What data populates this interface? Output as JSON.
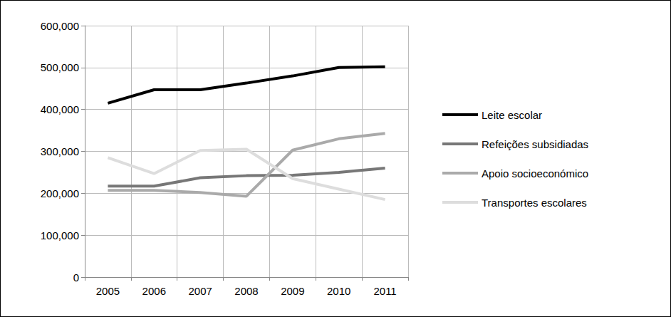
{
  "chart_data": {
    "type": "line",
    "categories": [
      "2005",
      "2006",
      "2007",
      "2008",
      "2009",
      "2010",
      "2011"
    ],
    "series": [
      {
        "name": "Leite escolar",
        "color": "#000000",
        "values": [
          415000,
          447000,
          447000,
          463000,
          480000,
          500000,
          502000
        ]
      },
      {
        "name": "Refeições subsidiadas",
        "color": "#777777",
        "values": [
          217000,
          217000,
          237000,
          242000,
          243000,
          250000,
          260000
        ]
      },
      {
        "name": "Apoio socioeconómico",
        "color": "#aaaaaa",
        "values": [
          207000,
          207000,
          202000,
          193000,
          303000,
          330000,
          343000
        ]
      },
      {
        "name": "Transportes escolares",
        "color": "#dddddd",
        "values": [
          285000,
          247000,
          302000,
          305000,
          235000,
          210000,
          185000
        ]
      }
    ],
    "ylim": [
      0,
      600000
    ],
    "yticks": [
      0,
      {
        "value": 100000,
        "label": "100,000"
      },
      {
        "value": 200000,
        "label": "200,000"
      },
      {
        "value": 300000,
        "label": "300,000"
      },
      {
        "value": 400000,
        "label": "400,000"
      },
      {
        "value": 500000,
        "label": "500,000"
      },
      {
        "value": 600000,
        "label": "600,000"
      }
    ],
    "grid": true,
    "legend": "right"
  }
}
